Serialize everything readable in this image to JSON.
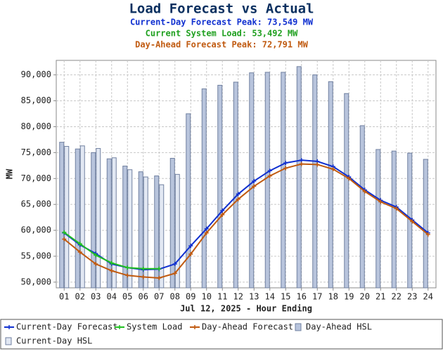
{
  "chart_data": {
    "type": "combo",
    "title": "Load Forecast vs Actual",
    "subtitles": [
      {
        "text": "Current-Day Forecast Peak:  73,549 MW",
        "color": "#1030d0"
      },
      {
        "text": "Current System Load:  53,492 MW",
        "color": "#20a020"
      },
      {
        "text": "Day-Ahead Forecast Peak:  72,791 MW",
        "color": "#c05a10"
      }
    ],
    "x_label": "Jul 12, 2025 - Hour Ending",
    "y_label": "MW",
    "categories": [
      "01",
      "02",
      "03",
      "04",
      "05",
      "06",
      "07",
      "08",
      "09",
      "10",
      "11",
      "12",
      "13",
      "14",
      "15",
      "16",
      "17",
      "18",
      "19",
      "20",
      "21",
      "22",
      "23",
      "24"
    ],
    "ylim": [
      48900,
      92800
    ],
    "yticks": [
      {
        "value": 50000,
        "label": "50,000"
      },
      {
        "value": 55000,
        "label": "55,000"
      },
      {
        "value": 60000,
        "label": "60,000"
      },
      {
        "value": 65000,
        "label": "65,000"
      },
      {
        "value": 70000,
        "label": "70,000"
      },
      {
        "value": 75000,
        "label": "75,000"
      },
      {
        "value": 80000,
        "label": "80,000"
      },
      {
        "value": 85000,
        "label": "85,000"
      },
      {
        "value": 90000,
        "label": "90,000"
      }
    ],
    "grid": true,
    "series": [
      {
        "name": "Current-Day Forecast",
        "kind": "line",
        "color": "#1030d0",
        "values": [
          59500,
          57200,
          55500,
          53500,
          52800,
          52400,
          52500,
          53500,
          57000,
          60300,
          63800,
          67000,
          69500,
          71500,
          73000,
          73549,
          73300,
          72300,
          70300,
          67800,
          65800,
          64500,
          62000,
          59500
        ]
      },
      {
        "name": "System Load",
        "kind": "line",
        "color": "#20c020",
        "values": [
          59600,
          57400,
          55200,
          53700,
          52800,
          52600,
          52600,
          null,
          null,
          null,
          null,
          null,
          null,
          null,
          null,
          null,
          null,
          null,
          null,
          null,
          null,
          null,
          null,
          null
        ]
      },
      {
        "name": "Day-Ahead Forecast",
        "kind": "line",
        "color": "#c05a10",
        "values": [
          58300,
          55800,
          53500,
          52200,
          51300,
          51000,
          50800,
          51700,
          55400,
          59500,
          63000,
          66000,
          68500,
          70500,
          72000,
          72791,
          72700,
          71800,
          70000,
          67500,
          65500,
          64200,
          61700,
          59200
        ]
      },
      {
        "name": "Day-Ahead HSL",
        "kind": "bar",
        "color": "#b8c4dc",
        "values": [
          77000,
          75700,
          75000,
          73800,
          72400,
          71300,
          70500,
          73900,
          82500,
          87300,
          88000,
          88600,
          90400,
          90500,
          90500,
          91600,
          90000,
          88700,
          86400,
          80200,
          75600,
          75300,
          74900,
          73700
        ]
      },
      {
        "name": "Current-Day HSL",
        "kind": "bar",
        "color": "#e2e8f3",
        "values": [
          76200,
          76300,
          75800,
          74000,
          71700,
          70300,
          68800,
          70800,
          null,
          null,
          null,
          null,
          null,
          null,
          null,
          null,
          null,
          null,
          null,
          null,
          null,
          null,
          null,
          null
        ]
      }
    ]
  }
}
